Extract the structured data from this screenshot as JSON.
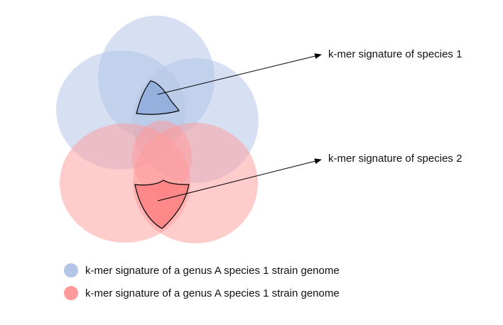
{
  "colors": {
    "genome_blue": "#b4c6e7",
    "genome_red": "#ff9a9a",
    "signature_blue": "#8faadc",
    "signature_red": "#ff8080",
    "outline": "#000000"
  },
  "annotations": [
    {
      "label": "k-mer signature of species 1"
    },
    {
      "label": "k-mer signature of species 2"
    }
  ],
  "legend": [
    {
      "label": "k-mer signature of a genus A species 1 strain genome",
      "color": "#b4c6e7"
    },
    {
      "label": "k-mer signature of a genus A species 1 strain genome",
      "color": "#ff9a9a"
    }
  ]
}
